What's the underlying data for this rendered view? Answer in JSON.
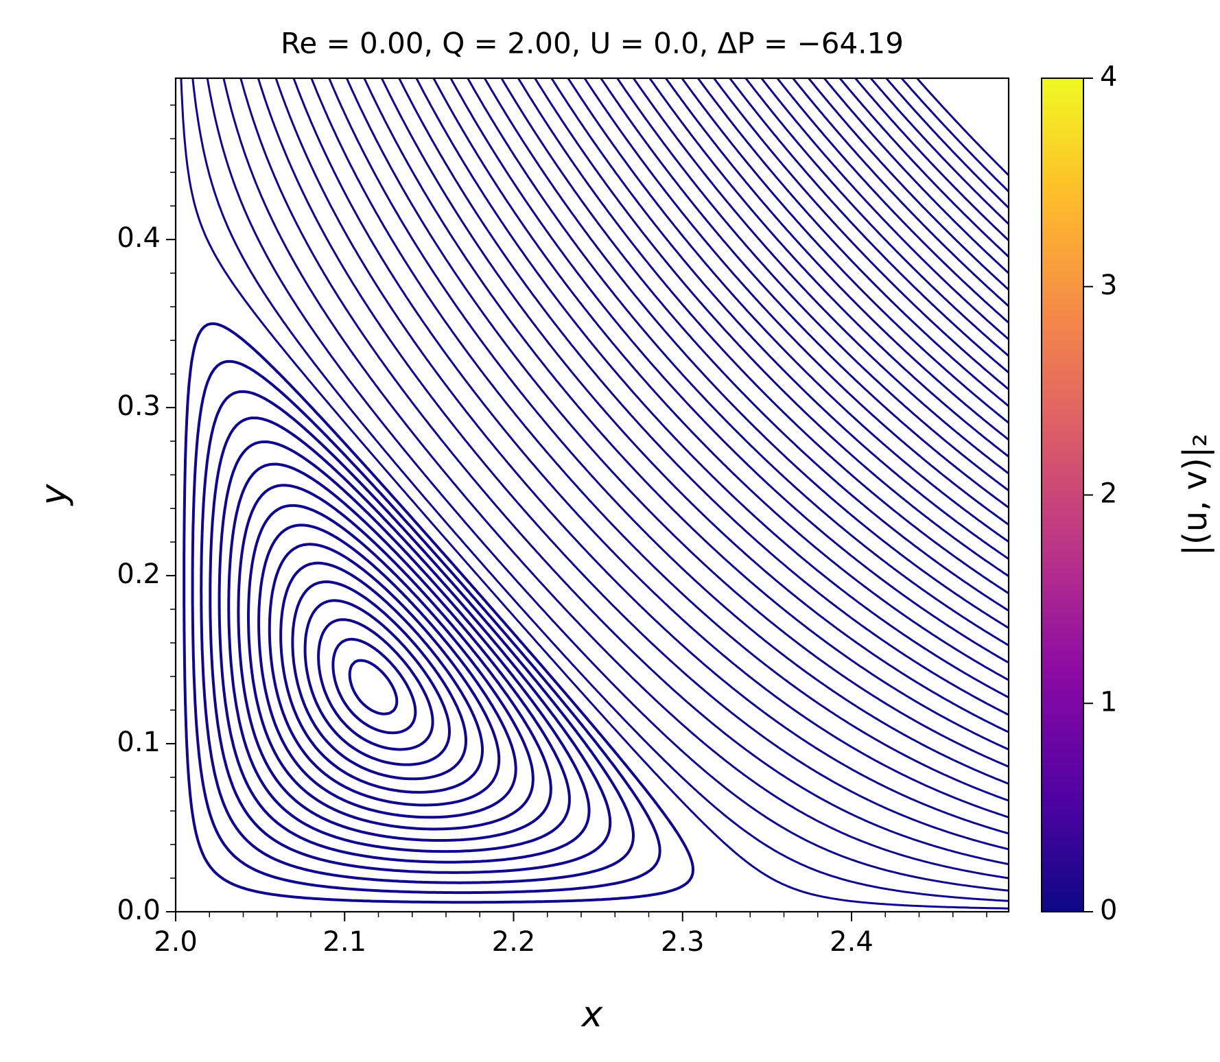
{
  "chart_data": {
    "type": "streamplot",
    "title": "Re = 0.00, Q = 2.00, U = 0.0, ΔP = −64.19",
    "x_label": "x",
    "y_label": "y",
    "color": "#10078a",
    "xlim": [
      2.0,
      2.493
    ],
    "ylim": [
      0,
      0.496
    ],
    "xticks": [
      {
        "value": 2.0,
        "label": "2.0"
      },
      2.1,
      2.2,
      2.3,
      2.4
    ],
    "yticks": [
      {
        "value": 0,
        "label": "0.0"
      },
      0.1,
      0.2,
      0.3,
      0.4
    ],
    "xminorticks": [
      2.02,
      2.04,
      2.06,
      2.08,
      2.12,
      2.14,
      2.16,
      2.18,
      2.22,
      2.24,
      2.26,
      2.28,
      2.32,
      2.34,
      2.36,
      2.38,
      2.42,
      2.44,
      2.46,
      2.48
    ],
    "yminorticks": [
      0.02,
      0.04,
      0.06,
      0.08,
      0.12,
      0.14,
      0.16,
      0.18,
      0.22,
      0.24,
      0.26,
      0.28,
      0.32,
      0.34,
      0.36,
      0.38,
      0.42,
      0.44,
      0.46,
      0.48
    ],
    "colorbar": {
      "label": "|(u, v)|₂",
      "lim": [
        0,
        4
      ],
      "ticks": [
        0,
        1,
        2,
        3,
        4
      ],
      "colormap": [
        "#0d0887",
        "#5302a3",
        "#8b0aa5",
        "#b83289",
        "#db5c68",
        "#f48849",
        "#febc2a",
        "#f0f921"
      ]
    }
  }
}
